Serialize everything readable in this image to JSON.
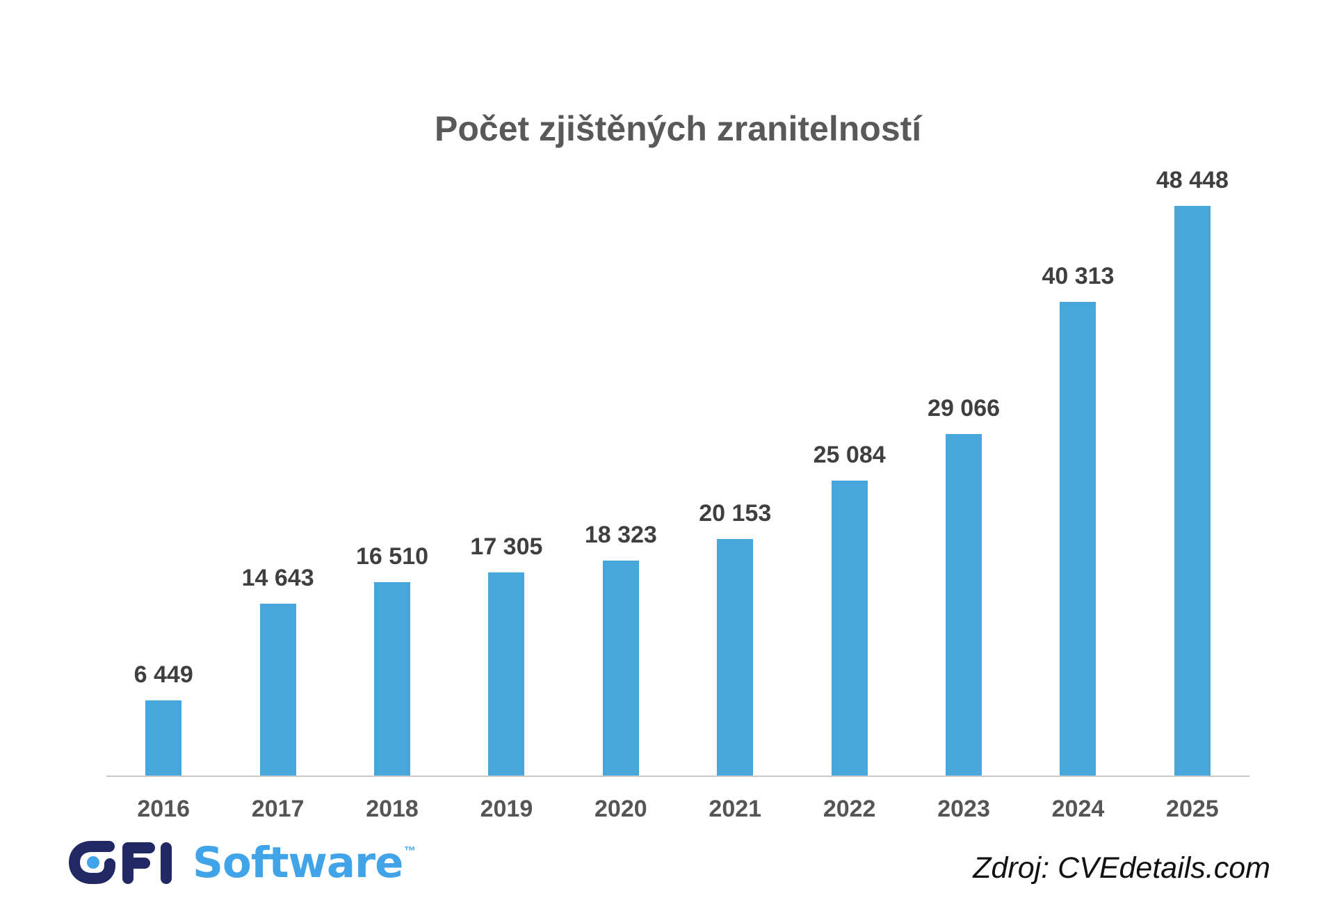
{
  "chart_data": {
    "type": "bar",
    "title": "Počet zjištěných zranitelností",
    "categories": [
      "2016",
      "2017",
      "2018",
      "2019",
      "2020",
      "2021",
      "2022",
      "2023",
      "2024",
      "2025"
    ],
    "values": [
      6449,
      14643,
      16510,
      17305,
      18323,
      20153,
      25084,
      29066,
      40313,
      48448
    ],
    "value_labels": [
      "6 449",
      "14 643",
      "16 510",
      "17 305",
      "18 323",
      "20 153",
      "25 084",
      "29 066",
      "40 313",
      "48 448"
    ],
    "xlabel": "",
    "ylabel": "",
    "ylim": [
      0,
      48448
    ],
    "grid": false,
    "legend_position": "none",
    "bar_color": "#47A7DC",
    "axis_line_color": "#C9C9C9",
    "title_color": "#595959",
    "value_label_color": "#3F3F3F",
    "category_label_color": "#555555"
  },
  "footer": {
    "logo": {
      "name": "GFI Software",
      "gfi_text": "GFI",
      "software_text": "Software",
      "trademark": "™",
      "navy_color": "#212863",
      "blue_color": "#41A4E8"
    },
    "source_text": "Zdroj: CVEdetails.com"
  }
}
